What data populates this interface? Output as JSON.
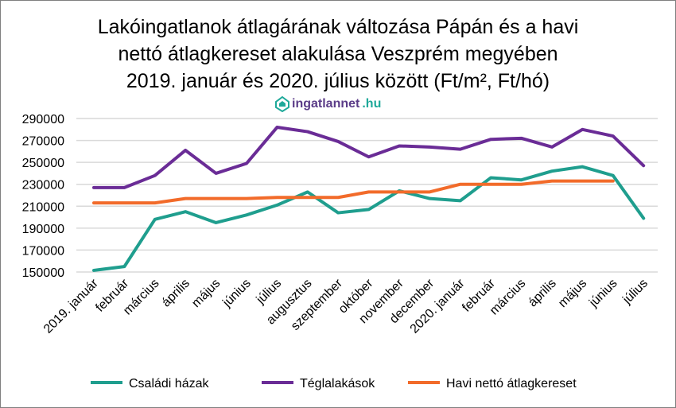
{
  "chart_data": {
    "type": "line",
    "title": "Lakóingatlanok átlagárának változása Pápán és a havi nettó átlagkereset alakulása Veszprém megyében 2019. január és 2020. július között (Ft/m², Ft/hó)",
    "title_lines": [
      "Lakóingatlanok átlagárának változása Pápán és a havi",
      "nettó átlagkereset alakulása Veszprém megyében",
      "2019. január és 2020. július között (Ft/m², Ft/hó)"
    ],
    "logo": {
      "part1": "ingatlannet",
      "part2": ".hu"
    },
    "xlabel": "",
    "ylabel": "",
    "ylim": [
      150000,
      290000
    ],
    "yticks": [
      150000,
      170000,
      190000,
      210000,
      230000,
      250000,
      270000,
      290000
    ],
    "grid": true,
    "legend_position": "bottom",
    "categories": [
      "2019. január",
      "február",
      "március",
      "április",
      "május",
      "június",
      "július",
      "augusztus",
      "szeptember",
      "október",
      "november",
      "december",
      "2020. január",
      "február",
      "március",
      "április",
      "május",
      "június",
      "július"
    ],
    "series": [
      {
        "name": "Családi házak",
        "color": "#1f9e8e",
        "values": [
          151500,
          155000,
          198000,
          205000,
          195000,
          202000,
          211000,
          223000,
          204000,
          207000,
          224000,
          217000,
          215000,
          236000,
          234000,
          242000,
          246000,
          238000,
          199000
        ]
      },
      {
        "name": "Téglalakások",
        "color": "#6a2c96",
        "values": [
          227000,
          227000,
          238000,
          261000,
          240000,
          249000,
          282000,
          278000,
          269000,
          255000,
          265000,
          264000,
          262000,
          271000,
          272000,
          264000,
          280000,
          274000,
          247000
        ]
      },
      {
        "name": "Havi nettó átlagkereset",
        "color": "#f26b2a",
        "values": [
          213000,
          213000,
          213000,
          217000,
          217000,
          217000,
          218000,
          218000,
          218000,
          223000,
          223000,
          223000,
          230000,
          230000,
          230000,
          233000,
          233000,
          233000,
          null
        ]
      }
    ]
  }
}
